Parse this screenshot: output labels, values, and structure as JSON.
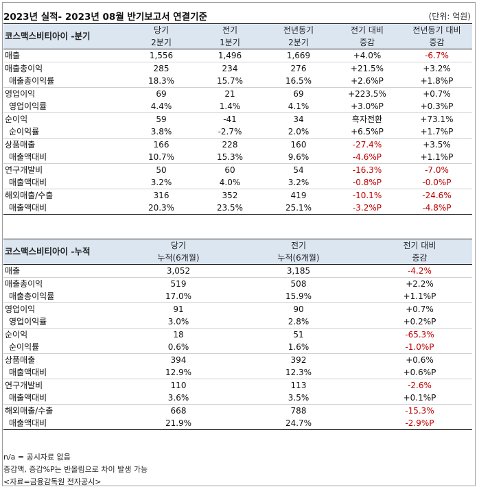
{
  "title": "2023년 실적- 2023년 08월 반기보고서 연결기준",
  "unit": "(단위: 억원)",
  "quarterly": {
    "corner": "코스맥스비티아이 -분기",
    "headers": [
      {
        "l1": "당기",
        "l2": "2분기"
      },
      {
        "l1": "전기",
        "l2": "1분기"
      },
      {
        "l1": "전년동기",
        "l2": "2분기"
      },
      {
        "l1": "전기 대비",
        "l2": "증감"
      },
      {
        "l1": "전년동기 대비",
        "l2": "증감"
      }
    ],
    "rows": [
      {
        "label": "매출",
        "values": [
          "1,556",
          "1,496",
          "1,669",
          "+4.0%",
          "-6.7%"
        ],
        "neg": [
          false,
          false,
          false,
          false,
          true
        ],
        "kind": "main"
      },
      {
        "label": "매출총이익",
        "values": [
          "285",
          "234",
          "276",
          "+21.5%",
          "+3.2%"
        ],
        "neg": [
          false,
          false,
          false,
          false,
          false
        ],
        "kind": "main"
      },
      {
        "label": "매출총이익률",
        "values": [
          "18.3%",
          "15.7%",
          "16.5%",
          "+2.6%P",
          "+1.8%P"
        ],
        "neg": [
          false,
          false,
          false,
          false,
          false
        ],
        "kind": "sub"
      },
      {
        "label": "영업이익",
        "values": [
          "69",
          "21",
          "69",
          "+223.5%",
          "+0.7%"
        ],
        "neg": [
          false,
          false,
          false,
          false,
          false
        ],
        "kind": "main"
      },
      {
        "label": "영업이익률",
        "values": [
          "4.4%",
          "1.4%",
          "4.1%",
          "+3.0%P",
          "+0.3%P"
        ],
        "neg": [
          false,
          false,
          false,
          false,
          false
        ],
        "kind": "sub"
      },
      {
        "label": "순이익",
        "values": [
          "59",
          "-41",
          "34",
          "흑자전환",
          "+73.1%"
        ],
        "neg": [
          false,
          false,
          false,
          false,
          false
        ],
        "kind": "main"
      },
      {
        "label": "순이익률",
        "values": [
          "3.8%",
          "-2.7%",
          "2.0%",
          "+6.5%P",
          "+1.7%P"
        ],
        "neg": [
          false,
          false,
          false,
          false,
          false
        ],
        "kind": "sub"
      },
      {
        "label": "상품매출",
        "values": [
          "166",
          "228",
          "160",
          "-27.4%",
          "+3.5%"
        ],
        "neg": [
          false,
          false,
          false,
          true,
          false
        ],
        "kind": "main"
      },
      {
        "label": "매출액대비",
        "values": [
          "10.7%",
          "15.3%",
          "9.6%",
          "-4.6%P",
          "+1.1%P"
        ],
        "neg": [
          false,
          false,
          false,
          true,
          false
        ],
        "kind": "sub"
      },
      {
        "label": "연구개발비",
        "values": [
          "50",
          "60",
          "54",
          "-16.3%",
          "-7.0%"
        ],
        "neg": [
          false,
          false,
          false,
          true,
          true
        ],
        "kind": "main"
      },
      {
        "label": "매출액대비",
        "values": [
          "3.2%",
          "4.0%",
          "3.2%",
          "-0.8%P",
          "-0.0%P"
        ],
        "neg": [
          false,
          false,
          false,
          true,
          true
        ],
        "kind": "sub"
      },
      {
        "label": "해외매출/수출",
        "values": [
          "316",
          "352",
          "419",
          "-10.1%",
          "-24.6%"
        ],
        "neg": [
          false,
          false,
          false,
          true,
          true
        ],
        "kind": "main"
      },
      {
        "label": "매출액대비",
        "values": [
          "20.3%",
          "23.5%",
          "25.1%",
          "-3.2%P",
          "-4.8%P"
        ],
        "neg": [
          false,
          false,
          false,
          true,
          true
        ],
        "kind": "sub"
      }
    ]
  },
  "cumulative": {
    "corner": "코스맥스비티아이 -누적",
    "headers": [
      {
        "l1": "당기",
        "l2": "누적(6개월)"
      },
      {
        "l1": "전기",
        "l2": "누적(6개월)"
      },
      {
        "l1": "전기 대비",
        "l2": "증감"
      }
    ],
    "rows": [
      {
        "label": "매출",
        "values": [
          "3,052",
          "3,185",
          "-4.2%"
        ],
        "neg": [
          false,
          false,
          true
        ],
        "kind": "main"
      },
      {
        "label": "매출총이익",
        "values": [
          "519",
          "508",
          "+2.2%"
        ],
        "neg": [
          false,
          false,
          false
        ],
        "kind": "main"
      },
      {
        "label": "매출총이익률",
        "values": [
          "17.0%",
          "15.9%",
          "+1.1%P"
        ],
        "neg": [
          false,
          false,
          false
        ],
        "kind": "sub"
      },
      {
        "label": "영업이익",
        "values": [
          "91",
          "90",
          "+0.7%"
        ],
        "neg": [
          false,
          false,
          false
        ],
        "kind": "main"
      },
      {
        "label": "영업이익률",
        "values": [
          "3.0%",
          "2.8%",
          "+0.2%P"
        ],
        "neg": [
          false,
          false,
          false
        ],
        "kind": "sub"
      },
      {
        "label": "순이익",
        "values": [
          "18",
          "51",
          "-65.3%"
        ],
        "neg": [
          false,
          false,
          true
        ],
        "kind": "main"
      },
      {
        "label": "순이익률",
        "values": [
          "0.6%",
          "1.6%",
          "-1.0%P"
        ],
        "neg": [
          false,
          false,
          true
        ],
        "kind": "sub"
      },
      {
        "label": "상품매출",
        "values": [
          "394",
          "392",
          "+0.6%"
        ],
        "neg": [
          false,
          false,
          false
        ],
        "kind": "main"
      },
      {
        "label": "매출액대비",
        "values": [
          "12.9%",
          "12.3%",
          "+0.6%P"
        ],
        "neg": [
          false,
          false,
          false
        ],
        "kind": "sub"
      },
      {
        "label": "연구개발비",
        "values": [
          "110",
          "113",
          "-2.6%"
        ],
        "neg": [
          false,
          false,
          true
        ],
        "kind": "main"
      },
      {
        "label": "매출액대비",
        "values": [
          "3.6%",
          "3.5%",
          "+0.1%P"
        ],
        "neg": [
          false,
          false,
          false
        ],
        "kind": "sub"
      },
      {
        "label": "해외매출/수출",
        "values": [
          "668",
          "788",
          "-15.3%"
        ],
        "neg": [
          false,
          false,
          true
        ],
        "kind": "main"
      },
      {
        "label": "매출액대비",
        "values": [
          "21.9%",
          "24.7%",
          "-2.9%P"
        ],
        "neg": [
          false,
          false,
          true
        ],
        "kind": "sub"
      }
    ]
  },
  "notes": [
    "n/a = 공시자료 없음",
    "증감액, 증감%P는 반올림으로 차이 발생 가능",
    "<자료=금융감독원 전자공시>"
  ],
  "colors": {
    "header_bg": "#dce6f1",
    "negative": "#c00000"
  }
}
